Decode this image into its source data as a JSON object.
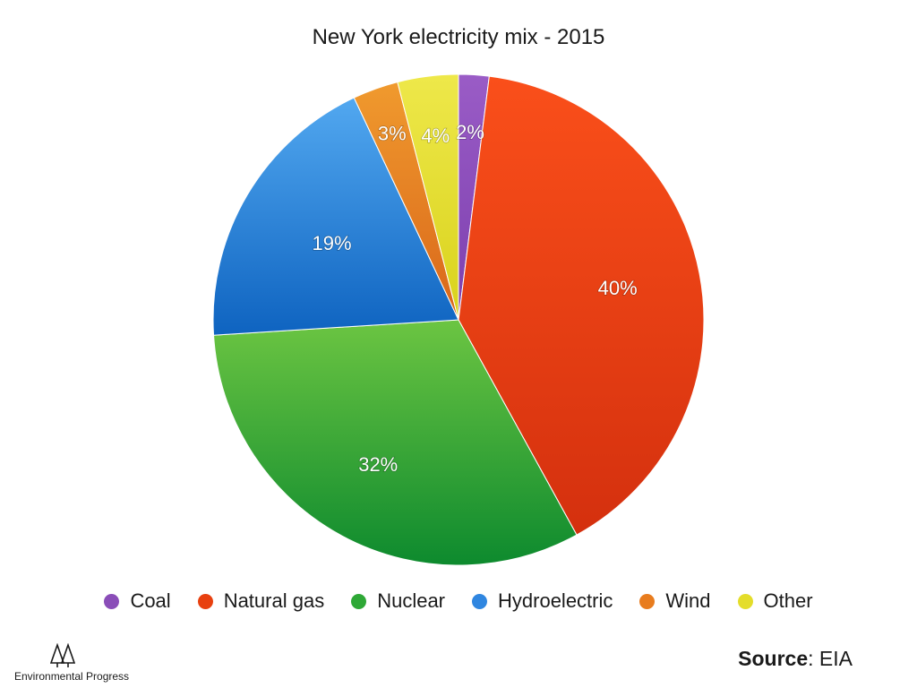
{
  "chart_data": {
    "type": "pie",
    "title": "New York electricity mix - 2015",
    "categories": [
      "Coal",
      "Natural gas",
      "Nuclear",
      "Hydroelectric",
      "Wind",
      "Other"
    ],
    "values": [
      2,
      40,
      32,
      19,
      3,
      4
    ],
    "labels": [
      "2%",
      "40%",
      "32%",
      "19%",
      "3%",
      "4%"
    ],
    "colors": {
      "Coal": [
        "#9a5cc6",
        "#7c3fae"
      ],
      "Natural gas": [
        "#fa4f1a",
        "#d4300e"
      ],
      "Nuclear": [
        "#6cc542",
        "#0d8a2e"
      ],
      "Hydroelectric": [
        "#52a8f0",
        "#0e63c0"
      ],
      "Wind": [
        "#f09a2e",
        "#d9661a"
      ],
      "Other": [
        "#eee84a",
        "#d9d21c"
      ]
    },
    "legend_colors": [
      "#8a4db8",
      "#e8400f",
      "#2ea836",
      "#2f86e0",
      "#e87c1e",
      "#e4dd2a"
    ],
    "legend_position": "bottom",
    "start_angle": "top, clockwise"
  },
  "logo": {
    "name": "tree-logo-icon",
    "text": "Environmental Progress"
  },
  "source": {
    "bold": "Source",
    "rest": ": EIA"
  }
}
